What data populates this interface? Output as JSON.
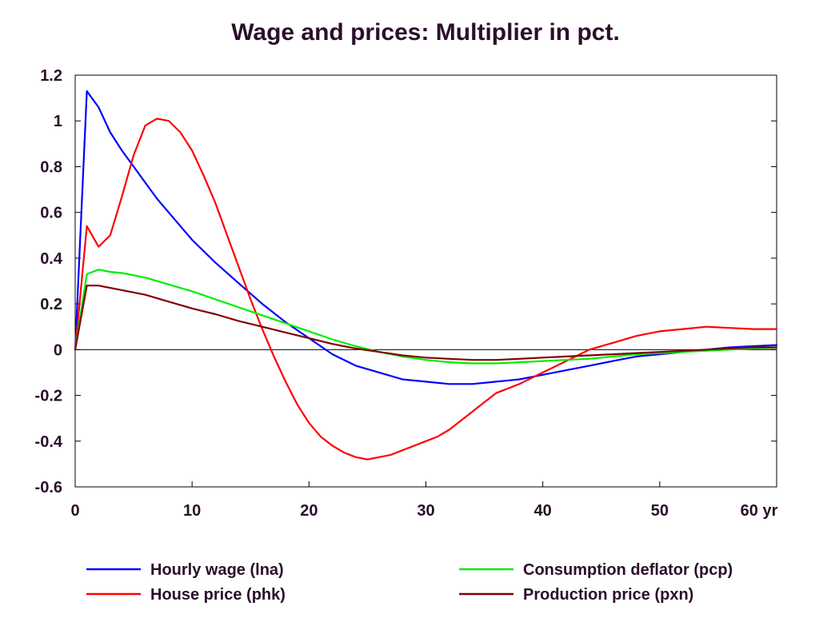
{
  "chart_data": {
    "type": "line",
    "title": "Wage and prices: Multiplier in pct.",
    "xlabel": "",
    "ylabel": "",
    "x_unit_suffix": "yr",
    "xlim": [
      0,
      60
    ],
    "ylim": [
      -0.6,
      1.2
    ],
    "x_ticks": [
      0,
      10,
      20,
      30,
      40,
      50,
      60
    ],
    "x_tick_labels": [
      "0",
      "10",
      "20",
      "30",
      "40",
      "50",
      "60 yr"
    ],
    "y_ticks": [
      -0.6,
      -0.4,
      -0.2,
      0,
      0.2,
      0.4,
      0.6,
      0.8,
      1,
      1.2
    ],
    "y_tick_labels": [
      "-0.6",
      "-0.4",
      "-0.2",
      "0",
      "0.2",
      "0.4",
      "0.6",
      "0.8",
      "1",
      "1.2"
    ],
    "zero_line": true,
    "grid": false,
    "legend_position": "bottom",
    "series": [
      {
        "name": "Hourly wage (lna)",
        "color": "#0000ff",
        "x": [
          0,
          1,
          2,
          3,
          4,
          5,
          6,
          7,
          8,
          9,
          10,
          12,
          14,
          16,
          18,
          20,
          22,
          24,
          26,
          28,
          30,
          32,
          34,
          36,
          38,
          40,
          42,
          44,
          46,
          48,
          50,
          52,
          54,
          56,
          58,
          60
        ],
        "y": [
          0,
          1.13,
          1.06,
          0.95,
          0.87,
          0.8,
          0.73,
          0.66,
          0.6,
          0.54,
          0.48,
          0.38,
          0.29,
          0.2,
          0.12,
          0.05,
          -0.02,
          -0.07,
          -0.1,
          -0.13,
          -0.14,
          -0.15,
          -0.15,
          -0.14,
          -0.13,
          -0.11,
          -0.09,
          -0.07,
          -0.05,
          -0.03,
          -0.02,
          -0.01,
          0.0,
          0.01,
          0.015,
          0.02
        ]
      },
      {
        "name": "House price (phk)",
        "color": "#ff0000",
        "x": [
          0,
          1,
          2,
          3,
          4,
          5,
          6,
          7,
          8,
          9,
          10,
          11,
          12,
          13,
          14,
          15,
          16,
          17,
          18,
          19,
          20,
          21,
          22,
          23,
          24,
          25,
          26,
          27,
          28,
          29,
          30,
          31,
          32,
          33,
          34,
          35,
          36,
          38,
          40,
          42,
          44,
          46,
          48,
          50,
          52,
          54,
          56,
          58,
          60
        ],
        "y": [
          0,
          0.54,
          0.45,
          0.5,
          0.67,
          0.85,
          0.98,
          1.01,
          1.0,
          0.95,
          0.87,
          0.76,
          0.64,
          0.5,
          0.36,
          0.22,
          0.09,
          -0.03,
          -0.14,
          -0.24,
          -0.32,
          -0.38,
          -0.42,
          -0.45,
          -0.47,
          -0.48,
          -0.47,
          -0.46,
          -0.44,
          -0.42,
          -0.4,
          -0.38,
          -0.35,
          -0.31,
          -0.27,
          -0.23,
          -0.19,
          -0.15,
          -0.1,
          -0.05,
          0.0,
          0.03,
          0.06,
          0.08,
          0.09,
          0.1,
          0.095,
          0.09,
          0.09
        ]
      },
      {
        "name": "Consumption deflator (pcp)",
        "color": "#00ee00",
        "x": [
          0,
          1,
          2,
          3,
          4,
          5,
          6,
          8,
          10,
          12,
          14,
          16,
          18,
          20,
          22,
          24,
          26,
          28,
          30,
          32,
          34,
          36,
          38,
          40,
          42,
          44,
          46,
          48,
          50,
          52,
          54,
          56,
          58,
          60
        ],
        "y": [
          0,
          0.33,
          0.35,
          0.34,
          0.335,
          0.325,
          0.315,
          0.285,
          0.255,
          0.22,
          0.185,
          0.15,
          0.115,
          0.08,
          0.045,
          0.015,
          -0.01,
          -0.03,
          -0.045,
          -0.055,
          -0.06,
          -0.06,
          -0.055,
          -0.05,
          -0.045,
          -0.04,
          -0.03,
          -0.02,
          -0.015,
          -0.01,
          -0.005,
          0.0,
          0.005,
          0.008
        ]
      },
      {
        "name": "Production price (pxn)",
        "color": "#800000",
        "x": [
          0,
          1,
          2,
          3,
          4,
          5,
          6,
          8,
          10,
          12,
          14,
          16,
          18,
          20,
          22,
          24,
          26,
          28,
          30,
          32,
          34,
          36,
          38,
          40,
          42,
          44,
          46,
          48,
          50,
          52,
          54,
          56,
          58,
          60
        ],
        "y": [
          0,
          0.28,
          0.28,
          0.27,
          0.26,
          0.25,
          0.24,
          0.21,
          0.18,
          0.155,
          0.125,
          0.1,
          0.075,
          0.05,
          0.025,
          0.005,
          -0.01,
          -0.025,
          -0.035,
          -0.04,
          -0.045,
          -0.045,
          -0.04,
          -0.035,
          -0.03,
          -0.025,
          -0.02,
          -0.015,
          -0.01,
          -0.005,
          0.0,
          0.005,
          0.01,
          0.01
        ]
      }
    ]
  }
}
